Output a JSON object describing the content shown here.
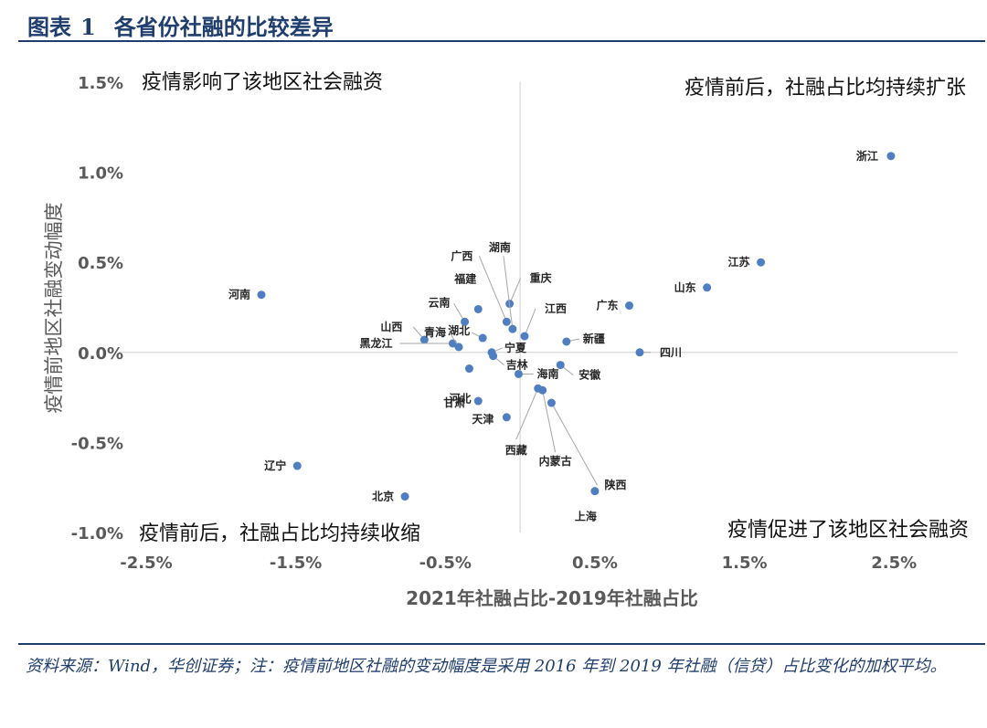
{
  "header": {
    "prefix": "图表",
    "number": "1",
    "title": "各省份社融的比较差异"
  },
  "note": "资料来源：Wind，华创证券；注：疫情前地区社融的变动幅度是采用 2016 年到 2019 年社融（信贷）占比变化的加权平均。",
  "chart_data": {
    "type": "scatter",
    "xlabel": "2021年社融占比-2019年社融占比",
    "ylabel": "疫情前地区社融变动幅度",
    "xlim": [
      -2.5,
      3.0
    ],
    "ylim": [
      -1.0,
      1.5
    ],
    "xticks": [
      -2.5,
      -1.5,
      -0.5,
      0.5,
      1.5,
      2.5
    ],
    "yticks": [
      1.5,
      1.0,
      0.5,
      0.0,
      -0.5,
      -1.0
    ],
    "xtick_labels": [
      "-2.5%",
      "-1.5%",
      "-0.5%",
      "0.5%",
      "1.5%",
      "2.5%"
    ],
    "ytick_labels": [
      "1.5%",
      "1.0%",
      "0.5%",
      "0.0%",
      "-0.5%",
      "-1.0%"
    ],
    "grid": false,
    "point_color": "#4f7fc0",
    "quadrant_labels": {
      "top_left": "疫情影响了该地区社会融资",
      "top_right": "疫情前后，社融占比均持续扩张",
      "bottom_left": "疫情前后，社融占比均持续收缩",
      "bottom_right": "疫情促进了该地区社会融资"
    },
    "points": [
      {
        "name": "浙江",
        "x": 2.48,
        "y": 1.09
      },
      {
        "name": "江苏",
        "x": 1.61,
        "y": 0.5
      },
      {
        "name": "山东",
        "x": 1.25,
        "y": 0.36
      },
      {
        "name": "广东",
        "x": 0.73,
        "y": 0.26
      },
      {
        "name": "四川",
        "x": 0.8,
        "y": 0.0
      },
      {
        "name": "新疆",
        "x": 0.31,
        "y": 0.06
      },
      {
        "name": "安徽",
        "x": 0.27,
        "y": -0.07
      },
      {
        "name": "上海",
        "x": 0.5,
        "y": -0.77
      },
      {
        "name": "陕西",
        "x": 0.21,
        "y": -0.28
      },
      {
        "name": "内蒙古",
        "x": 0.15,
        "y": -0.21
      },
      {
        "name": "西藏",
        "x": 0.12,
        "y": -0.2
      },
      {
        "name": "海南",
        "x": -0.01,
        "y": -0.12
      },
      {
        "name": "江西",
        "x": 0.03,
        "y": 0.09
      },
      {
        "name": "重庆",
        "x": -0.07,
        "y": 0.27
      },
      {
        "name": "湖南",
        "x": -0.05,
        "y": 0.13
      },
      {
        "name": "广西",
        "x": -0.09,
        "y": 0.17
      },
      {
        "name": "宁夏",
        "x": -0.19,
        "y": 0.0
      },
      {
        "name": "吉林",
        "x": -0.18,
        "y": -0.02
      },
      {
        "name": "福建",
        "x": -0.28,
        "y": 0.24
      },
      {
        "name": "湖北",
        "x": -0.25,
        "y": 0.08
      },
      {
        "name": "云南",
        "x": -0.37,
        "y": 0.17
      },
      {
        "name": "河北",
        "x": -0.34,
        "y": -0.09
      },
      {
        "name": "甘肃",
        "x": -0.28,
        "y": -0.27
      },
      {
        "name": "天津",
        "x": -0.09,
        "y": -0.36
      },
      {
        "name": "山西",
        "x": -0.64,
        "y": 0.07
      },
      {
        "name": "黑龙江",
        "x": -0.45,
        "y": 0.05
      },
      {
        "name": "青海",
        "x": -0.41,
        "y": 0.03
      },
      {
        "name": "河南",
        "x": -1.73,
        "y": 0.32
      },
      {
        "name": "辽宁",
        "x": -1.49,
        "y": -0.63
      },
      {
        "name": "北京",
        "x": -0.77,
        "y": -0.8
      }
    ]
  }
}
